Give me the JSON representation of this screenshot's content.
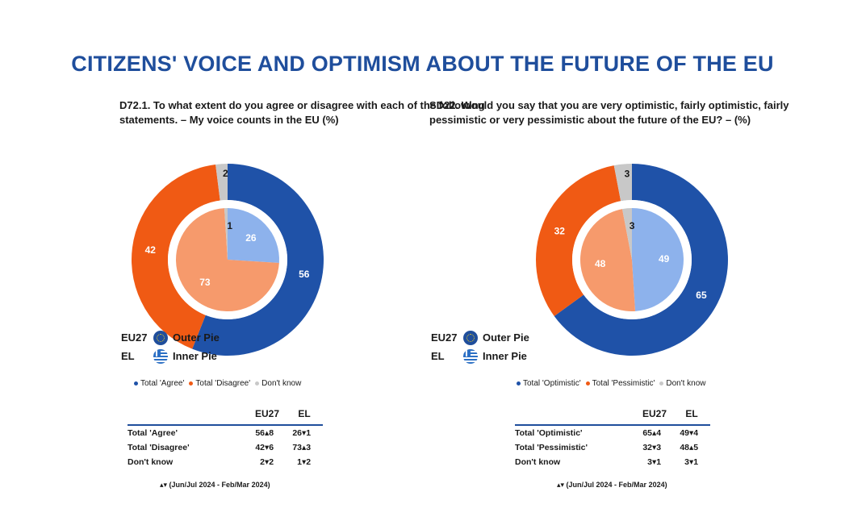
{
  "title": "CITIZENS' VOICE AND OPTIMISM ABOUT THE FUTURE OF THE EU",
  "colors": {
    "eu_agree": "#1f52a8",
    "eu_disagree": "#f05a14",
    "dont_know": "#c8c8c8",
    "el_agree": "#8db2ec",
    "el_disagree": "#f69a6c",
    "title": "#1f4e9c"
  },
  "pie_legend": [
    {
      "code": "EU27",
      "icon": "eu-flag-icon",
      "label": "Outer Pie"
    },
    {
      "code": "EL",
      "icon": "greek-flag-icon",
      "label": "Inner Pie"
    }
  ],
  "trend_note": "▴▾ (Jun/Jul 2024 - Feb/Mar 2024)",
  "chart_data": [
    {
      "type": "pie",
      "title": "D72.1. To what extent do you agree or disagree with each of the following statements. – My voice counts in the EU (%)",
      "categories": [
        "Total 'Agree'",
        "Total 'Disagree'",
        "Don't know"
      ],
      "series": [
        {
          "name": "EU27",
          "ring": "outer",
          "values": [
            56,
            42,
            2
          ]
        },
        {
          "name": "EL",
          "ring": "inner",
          "values": [
            26,
            73,
            1
          ]
        }
      ],
      "legend_labels": [
        "Total 'Agree'",
        "Total 'Disagree'",
        "Don't know"
      ],
      "table": {
        "headers": [
          "EU27",
          "EL"
        ],
        "rows": [
          {
            "label": "Total 'Agree'",
            "eu": "56",
            "eu_chg": "▴8",
            "el": "26",
            "el_chg": "▾1"
          },
          {
            "label": "Total 'Disagree'",
            "eu": "42",
            "eu_chg": "▾6",
            "el": "73",
            "el_chg": "▴3"
          },
          {
            "label": "Don't know",
            "eu": "2",
            "eu_chg": "▾2",
            "el": "1",
            "el_chg": "▾2"
          }
        ]
      }
    },
    {
      "type": "pie",
      "title": "SD22. Would you say that you are very optimistic, fairly optimistic, fairly pessimistic or very pessimistic about the future of the EU? – (%)",
      "categories": [
        "Total 'Optimistic'",
        "Total 'Pessimistic'",
        "Don't know"
      ],
      "series": [
        {
          "name": "EU27",
          "ring": "outer",
          "values": [
            65,
            32,
            3
          ]
        },
        {
          "name": "EL",
          "ring": "inner",
          "values": [
            49,
            48,
            3
          ]
        }
      ],
      "legend_labels": [
        "Total 'Optimistic'",
        "Total 'Pessimistic'",
        "Don't know"
      ],
      "table": {
        "headers": [
          "EU27",
          "EL"
        ],
        "rows": [
          {
            "label": "Total 'Optimistic'",
            "eu": "65",
            "eu_chg": "▴4",
            "el": "49",
            "el_chg": "▾4"
          },
          {
            "label": "Total 'Pessimistic'",
            "eu": "32",
            "eu_chg": "▾3",
            "el": "48",
            "el_chg": "▴5"
          },
          {
            "label": "Don't know",
            "eu": "3",
            "eu_chg": "▾1",
            "el": "3",
            "el_chg": "▾1"
          }
        ]
      }
    }
  ]
}
